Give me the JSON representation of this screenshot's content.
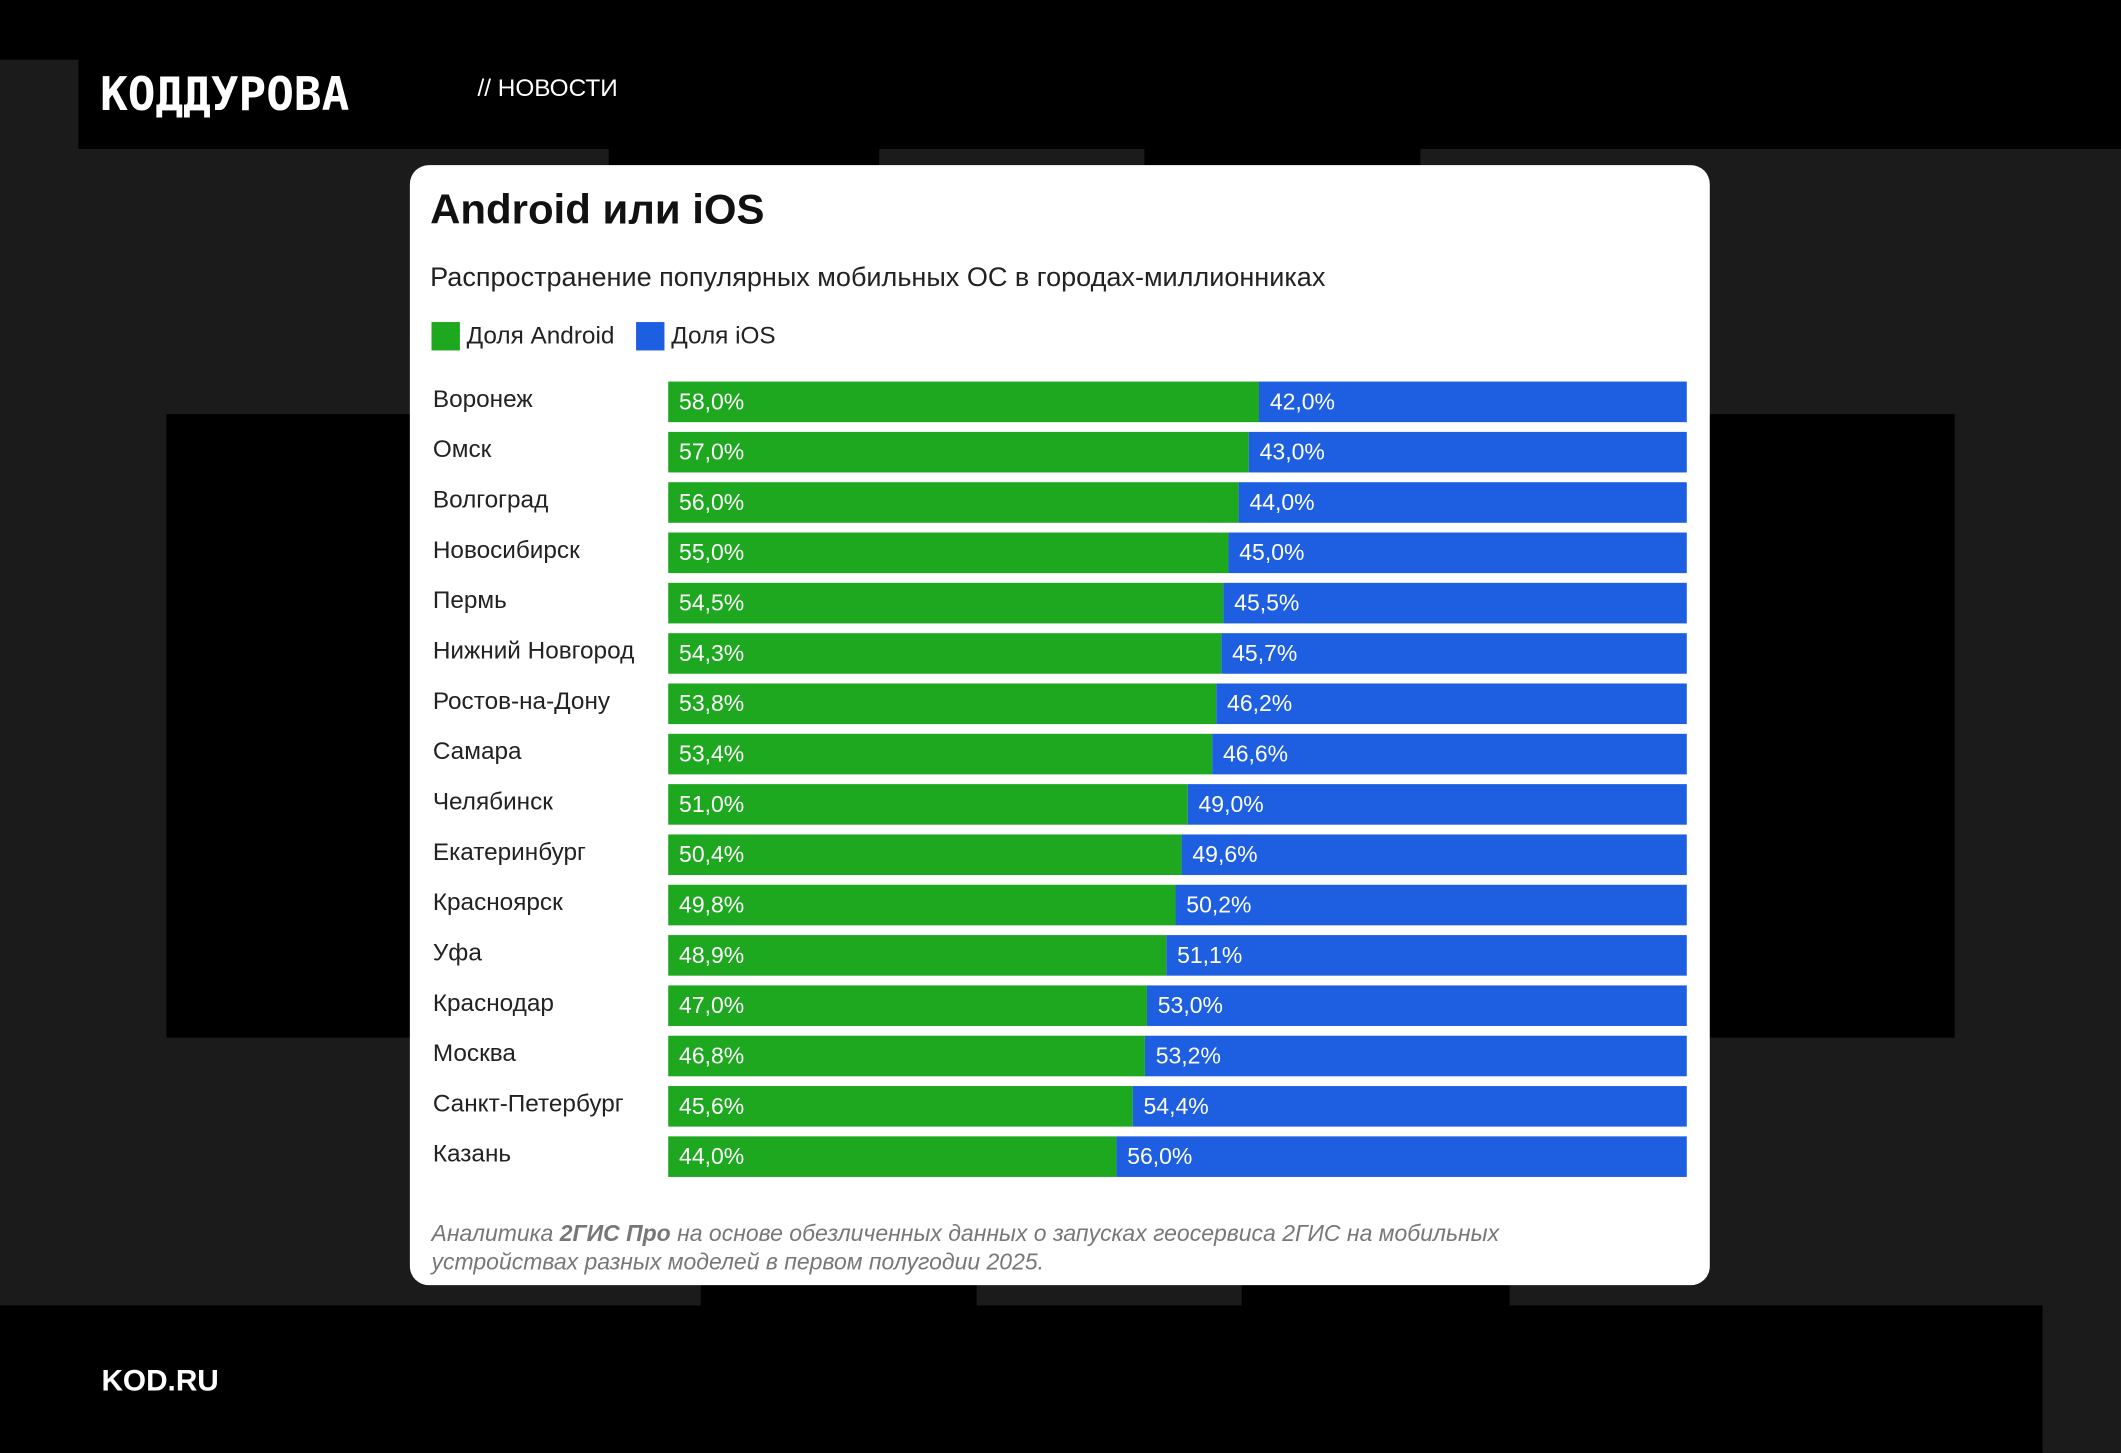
{
  "brand": "КОДДУРОВА",
  "section": "// НОВОСТИ",
  "site": "KOD.RU",
  "chart_data": {
    "type": "stacked-bar",
    "orientation": "horizontal",
    "title": "Android или iOS",
    "subtitle": "Распространение популярных мобильных ОС в городах-миллионниках",
    "categories": [
      "Воронеж",
      "Омск",
      "Волгоград",
      "Новосибирск",
      "Пермь",
      "Нижний Новгород",
      "Ростов-на-Дону",
      "Самара",
      "Челябинск",
      "Екатеринбург",
      "Красноярск",
      "Уфа",
      "Краснодар",
      "Москва",
      "Санкт-Петербург",
      "Казань"
    ],
    "xlim": [
      0,
      100
    ],
    "legend": "top-left",
    "series": [
      {
        "name": "Доля Android",
        "color": "#1ea820",
        "values": [
          58.0,
          57.0,
          56.0,
          55.0,
          54.5,
          54.3,
          53.8,
          53.4,
          51.0,
          50.4,
          49.8,
          48.9,
          47.0,
          46.8,
          45.6,
          44.0
        ],
        "value_labels": [
          "58,0%",
          "57,0%",
          "56,0%",
          "55,0%",
          "54,5%",
          "54,3%",
          "53,8%",
          "53,4%",
          "51,0%",
          "50,4%",
          "49,8%",
          "48,9%",
          "47,0%",
          "46,8%",
          "45,6%",
          "44,0%"
        ]
      },
      {
        "name": "Доля iOS",
        "color": "#1d5fe0",
        "values": [
          42.0,
          43.0,
          44.0,
          45.0,
          45.5,
          45.7,
          46.2,
          46.6,
          49.0,
          49.6,
          50.2,
          51.1,
          53.0,
          53.2,
          54.4,
          56.0
        ],
        "value_labels": [
          "42,0%",
          "43,0%",
          "44,0%",
          "45,0%",
          "45,5%",
          "45,7%",
          "46,2%",
          "46,6%",
          "49,0%",
          "49,6%",
          "50,2%",
          "51,1%",
          "53,0%",
          "53,2%",
          "54,4%",
          "56,0%"
        ]
      }
    ],
    "note": [
      "Аналитика ",
      "2ГИС Про",
      " на основе обезличенных данных о запусках геосервиса 2ГИС на мобильных",
      "устройствах разных моделей в первом полугодии 2025."
    ]
  }
}
